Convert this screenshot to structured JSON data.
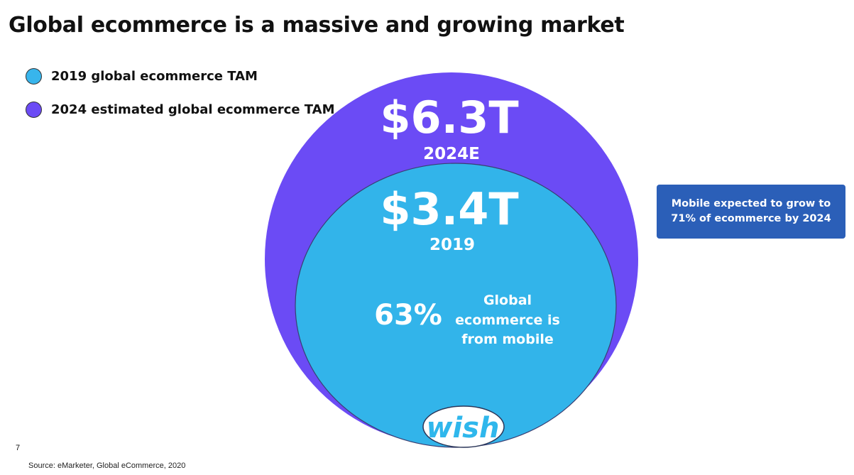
{
  "page": {
    "title": "Global ecommerce is a massive and growing market",
    "page_number": "7",
    "source": "Source: eMarketer, Global eCommerce, 2020",
    "callout": "Mobile expected to grow to 71% of ecommerce by 2024",
    "logo_text": "wish"
  },
  "legend": [
    {
      "label": "2019 global ecommerce TAM",
      "color": "#38b5ec"
    },
    {
      "label": "2024 estimated global ecommerce TAM",
      "color": "#6b4bf5"
    }
  ],
  "chart_data": {
    "type": "bubble",
    "title": "Global ecommerce is a massive and growing market",
    "series": [
      {
        "name": "2024 estimated global ecommerce TAM",
        "value_label": "$6.3T",
        "year_label": "2024E",
        "value": 6.3,
        "color": "#6b4bf5"
      },
      {
        "name": "2019 global ecommerce TAM",
        "value_label": "$3.4T",
        "year_label": "2019",
        "value": 3.4,
        "color": "#32b4ea"
      }
    ],
    "annotations": [
      {
        "text": "63%",
        "detail": "Global ecommerce is from mobile",
        "value": 63
      }
    ]
  }
}
